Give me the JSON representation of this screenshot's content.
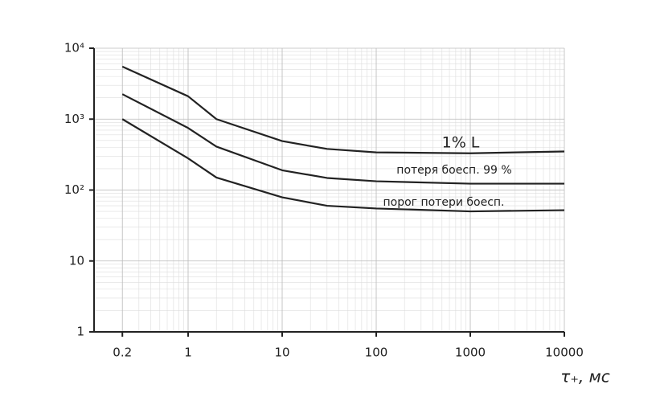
{
  "chart_data": {
    "type": "line",
    "x_label": "τ₊, мс",
    "x": [
      0.2,
      1,
      2,
      10,
      30,
      100,
      1000,
      10000
    ],
    "series": [
      {
        "name": "1% L",
        "color": "#222222",
        "values": [
          5500,
          2100,
          1000,
          490,
          380,
          340,
          330,
          350
        ]
      },
      {
        "name": "потеря боесп. 99 %",
        "color": "#222222",
        "values": [
          2250,
          750,
          410,
          190,
          148,
          133,
          123,
          123
        ]
      },
      {
        "name": "порог потери боесп.",
        "color": "#222222",
        "values": [
          1000,
          280,
          150,
          79,
          60,
          55,
          50,
          52
        ]
      }
    ],
    "log_x": true,
    "log_y": true,
    "grid": true,
    "xlim": [
      0.1,
      10000
    ],
    "xticks": [
      0.2,
      1,
      10,
      100,
      1000,
      10000
    ],
    "ylim": [
      1,
      10000
    ],
    "yticks": [
      1,
      10,
      {
        "value": 100,
        "label": "10²"
      },
      {
        "value": 1000,
        "label": "10³"
      },
      {
        "value": 10000,
        "label": "10⁴"
      }
    ]
  }
}
